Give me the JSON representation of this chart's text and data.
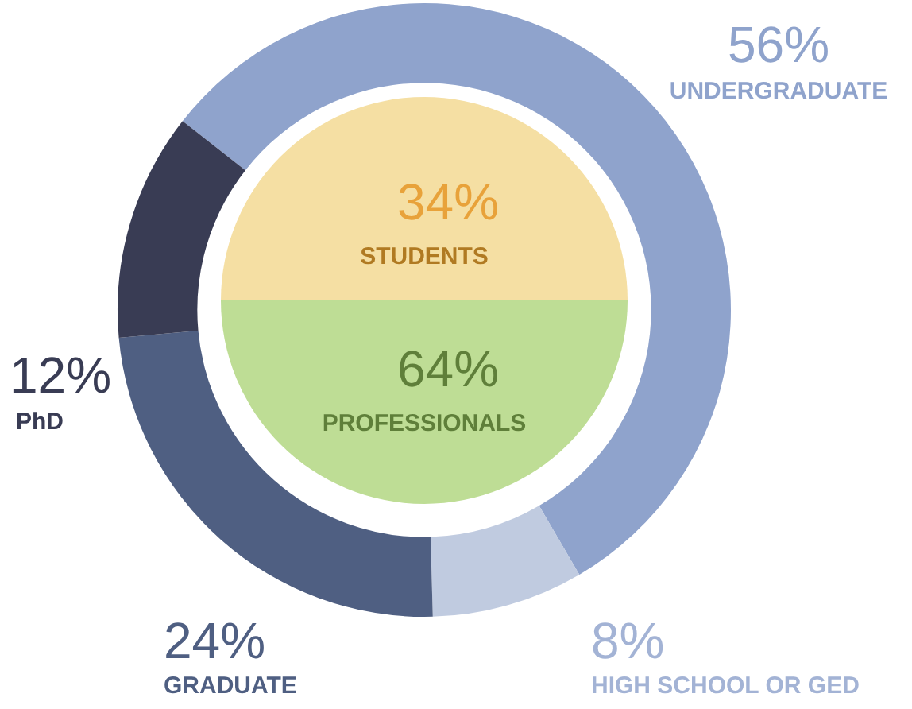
{
  "chart_data": [
    {
      "type": "donut",
      "categories": [
        "UNDERGRADUATE",
        "HIGH SCHOOL OR GED",
        "GRADUATE",
        "PhD"
      ],
      "values": [
        56,
        8,
        24,
        12
      ],
      "value_labels": [
        "56%",
        "8%",
        "24%",
        "12%"
      ],
      "colors": [
        "#8fa3cc",
        "#c0cbe0",
        "#4f5f82",
        "#393c54"
      ],
      "legend": false
    },
    {
      "type": "other",
      "categories": [
        "STUDENTS",
        "PROFESSIONALS"
      ],
      "values": [
        34,
        64
      ],
      "value_labels": [
        "34%",
        "64%"
      ],
      "colors": [
        "#f5dfa3",
        "#bedd95"
      ]
    }
  ]
}
